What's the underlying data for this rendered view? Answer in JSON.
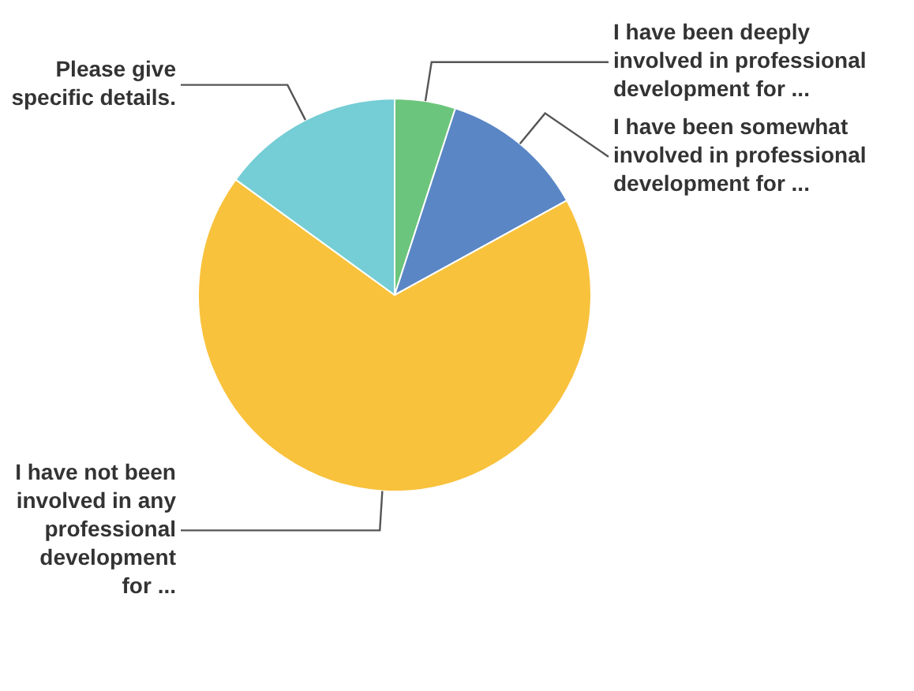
{
  "chart_data": {
    "type": "pie",
    "categories": [
      "I have been deeply involved in professional development for ...",
      "I have been somewhat involved in professional development for ...",
      "I have not been involved in any professional development for ...",
      "Please give specific details."
    ],
    "values": [
      5,
      12,
      68,
      15
    ],
    "colors": [
      "#6cc57c",
      "#5a86c5",
      "#f9c23c",
      "#75cdd5"
    ]
  }
}
